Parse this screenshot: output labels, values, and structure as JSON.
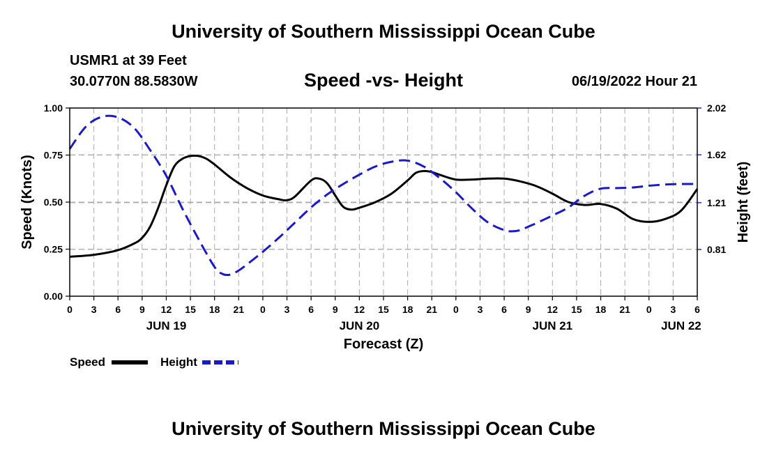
{
  "header": {
    "title": "University of Southern Mississippi Ocean Cube",
    "station": "USMR1 at 39 Feet",
    "coords": "30.0770N  88.5830W",
    "datetime": "06/19/2022 Hour 21"
  },
  "footer": {
    "title": "University of Southern Mississippi Ocean Cube"
  },
  "chart_data": {
    "type": "line",
    "title": "Speed -vs- Height",
    "xlabel": "Forecast (Z)",
    "ylabel": "Speed (Knots)",
    "y2label": "Height (feet)",
    "x_range_hours": [
      0,
      78
    ],
    "ylim": [
      0,
      1
    ],
    "y2lim": [
      0.41,
      2.02
    ],
    "x_tick_labels": [
      "0",
      "3",
      "6",
      "9",
      "12",
      "15",
      "18",
      "21",
      "0",
      "3",
      "6",
      "9",
      "12",
      "15",
      "18",
      "21",
      "0",
      "3",
      "6",
      "9",
      "12",
      "15",
      "18",
      "21",
      "0",
      "3",
      "6"
    ],
    "date_labels": [
      {
        "label": "JUN 19",
        "hour": 12
      },
      {
        "label": "JUN 20",
        "hour": 36
      },
      {
        "label": "JUN 21",
        "hour": 60
      },
      {
        "label": "JUN 22",
        "hour": 76
      }
    ],
    "y_ticks": [
      "0.00",
      "0.25",
      "0.50",
      "0.75",
      "1.00"
    ],
    "y_tick_values": [
      0,
      0.25,
      0.5,
      0.75,
      1.0
    ],
    "y2_ticks": [
      "0.81",
      "1.21",
      "1.62",
      "2.02"
    ],
    "y2_tick_values": [
      0.81,
      1.21,
      1.62,
      2.02
    ],
    "grid": true,
    "legend": [
      {
        "name": "Speed",
        "color": "#000000",
        "style": "solid"
      },
      {
        "name": "Height",
        "color": "#1a1acc",
        "style": "dashed"
      }
    ],
    "series": [
      {
        "name": "Speed",
        "axis": "left",
        "color": "#000000",
        "x": [
          0,
          3,
          6,
          8,
          9,
          10,
          11,
          12,
          13,
          14,
          15,
          16,
          17,
          18,
          20,
          22,
          24,
          26,
          27,
          28,
          30,
          31,
          32,
          33,
          34,
          35,
          36,
          38,
          40,
          42,
          43,
          44,
          45,
          46,
          48,
          50,
          52,
          54,
          56,
          58,
          60,
          62,
          64,
          66,
          68,
          70,
          72,
          74,
          76,
          78
        ],
        "values": [
          0.21,
          0.22,
          0.245,
          0.28,
          0.31,
          0.37,
          0.47,
          0.59,
          0.69,
          0.73,
          0.745,
          0.745,
          0.73,
          0.7,
          0.63,
          0.575,
          0.535,
          0.515,
          0.51,
          0.53,
          0.615,
          0.625,
          0.6,
          0.535,
          0.475,
          0.46,
          0.47,
          0.5,
          0.545,
          0.615,
          0.655,
          0.665,
          0.66,
          0.645,
          0.62,
          0.62,
          0.625,
          0.625,
          0.61,
          0.585,
          0.545,
          0.5,
          0.485,
          0.49,
          0.465,
          0.41,
          0.395,
          0.41,
          0.455,
          0.57
        ]
      },
      {
        "name": "Height",
        "axis": "right",
        "color": "#1a1acc",
        "x": [
          0,
          2,
          4,
          6,
          8,
          10,
          12,
          14,
          16,
          18,
          19,
          20,
          21,
          22,
          24,
          26,
          28,
          30,
          32,
          34,
          36,
          38,
          40,
          42,
          44,
          46,
          48,
          50,
          52,
          54,
          55,
          56,
          57,
          58,
          60,
          62,
          64,
          66,
          68,
          70,
          72,
          74,
          76,
          78
        ],
        "values": [
          1.67,
          1.86,
          1.945,
          1.94,
          1.85,
          1.66,
          1.44,
          1.16,
          0.9,
          0.66,
          0.6,
          0.595,
          0.63,
          0.68,
          0.79,
          0.91,
          1.04,
          1.17,
          1.28,
          1.37,
          1.45,
          1.52,
          1.56,
          1.57,
          1.52,
          1.42,
          1.3,
          1.16,
          1.04,
          0.975,
          0.965,
          0.975,
          1.005,
          1.035,
          1.1,
          1.17,
          1.27,
          1.33,
          1.335,
          1.34,
          1.355,
          1.365,
          1.37,
          1.37
        ]
      }
    ]
  }
}
